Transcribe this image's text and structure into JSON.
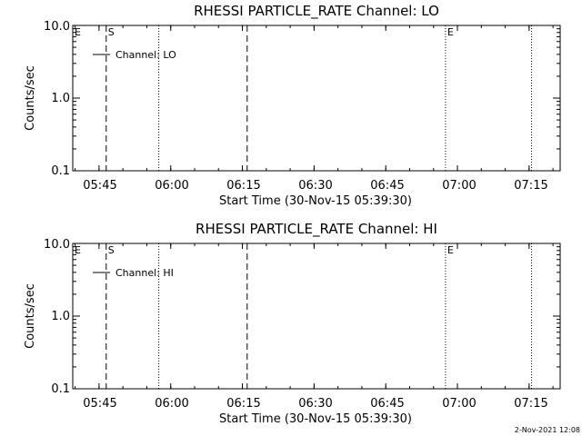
{
  "chart_data": [
    {
      "type": "line",
      "title": "RHESSI PARTICLE_RATE Channel: LO",
      "xlabel": "Start Time (30-Nov-15 05:39:30)",
      "ylabel": "Counts/sec",
      "y_scale": "log",
      "ylim": [
        0.1,
        10.0
      ],
      "y_ticks": [
        "0.1",
        "1.0",
        "10.0"
      ],
      "x_ticks": [
        "05:45",
        "06:00",
        "06:15",
        "06:30",
        "06:45",
        "07:00",
        "07:15"
      ],
      "xlim_minutes_after_start": [
        0,
        102
      ],
      "series": [
        {
          "name": "Channel: LO",
          "values": []
        }
      ],
      "legend": {
        "position": "top-left",
        "entries": [
          "Channel: LO"
        ]
      },
      "markers": [
        {
          "label": "E",
          "time": "05:39:30",
          "style": "none"
        },
        {
          "label": "S",
          "time": "05:46:30",
          "style": "dashed"
        },
        {
          "label": "",
          "time": "05:57:30",
          "style": "dotted"
        },
        {
          "label": "",
          "time": "06:16:00",
          "style": "dashed"
        },
        {
          "label": "E",
          "time": "06:57:30",
          "style": "dotted"
        },
        {
          "label": "",
          "time": "07:15:30",
          "style": "dotted"
        }
      ],
      "grid": false
    },
    {
      "type": "line",
      "title": "RHESSI PARTICLE_RATE Channel: HI",
      "xlabel": "Start Time (30-Nov-15 05:39:30)",
      "ylabel": "Counts/sec",
      "y_scale": "log",
      "ylim": [
        0.1,
        10.0
      ],
      "y_ticks": [
        "0.1",
        "1.0",
        "10.0"
      ],
      "x_ticks": [
        "05:45",
        "06:00",
        "06:15",
        "06:30",
        "06:45",
        "07:00",
        "07:15"
      ],
      "xlim_minutes_after_start": [
        0,
        102
      ],
      "series": [
        {
          "name": "Channel: HI",
          "values": []
        }
      ],
      "legend": {
        "position": "top-left",
        "entries": [
          "Channel: HI"
        ]
      },
      "markers": [
        {
          "label": "E",
          "time": "05:39:30",
          "style": "none"
        },
        {
          "label": "S",
          "time": "05:46:30",
          "style": "dashed"
        },
        {
          "label": "",
          "time": "05:57:30",
          "style": "dotted"
        },
        {
          "label": "",
          "time": "06:16:00",
          "style": "dashed"
        },
        {
          "label": "E",
          "time": "06:57:30",
          "style": "dotted"
        },
        {
          "label": "",
          "time": "07:15:30",
          "style": "dotted"
        }
      ],
      "grid": false
    }
  ],
  "footer": {
    "timestamp": "2-Nov-2021 12:08"
  }
}
